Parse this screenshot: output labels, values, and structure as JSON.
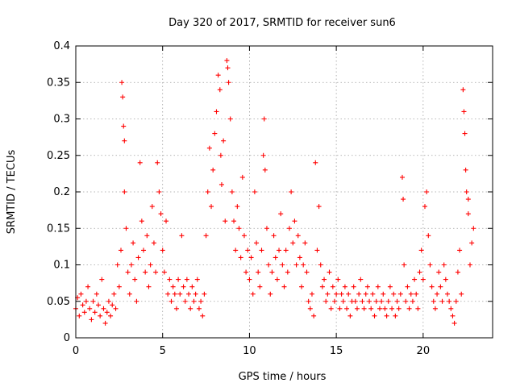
{
  "chart_data": {
    "type": "scatter",
    "title": "Day 320 of 2017, SRMTID for receiver sun6",
    "xlabel": "GPS time / hours",
    "ylabel": "SRMTID / TECUs",
    "xlim": [
      0,
      24
    ],
    "ylim": [
      0,
      0.4
    ],
    "xticks": [
      0,
      5,
      10,
      15,
      20
    ],
    "xtick_labels": [
      "0",
      "5",
      "10",
      "15",
      "20"
    ],
    "yticks": [
      0,
      0.05,
      0.1,
      0.15,
      0.2,
      0.25,
      0.3,
      0.35,
      0.4
    ],
    "ytick_labels": [
      "0",
      "0.05",
      "0.1",
      "0.15",
      "0.2",
      "0.25",
      "0.3",
      "0.35",
      "0.4"
    ],
    "grid": true,
    "marker": "+",
    "color": "#ff0000",
    "series": [
      {
        "name": "SRMTID",
        "points": [
          [
            0.0,
            0.04
          ],
          [
            0.1,
            0.055
          ],
          [
            0.2,
            0.03
          ],
          [
            0.3,
            0.06
          ],
          [
            0.4,
            0.045
          ],
          [
            0.5,
            0.035
          ],
          [
            0.6,
            0.05
          ],
          [
            0.7,
            0.07
          ],
          [
            0.8,
            0.04
          ],
          [
            0.9,
            0.025
          ],
          [
            1.0,
            0.05
          ],
          [
            1.1,
            0.035
          ],
          [
            1.2,
            0.06
          ],
          [
            1.3,
            0.045
          ],
          [
            1.4,
            0.03
          ],
          [
            1.5,
            0.08
          ],
          [
            1.6,
            0.04
          ],
          [
            1.7,
            0.02
          ],
          [
            1.8,
            0.035
          ],
          [
            1.9,
            0.05
          ],
          [
            2.0,
            0.03
          ],
          [
            2.1,
            0.045
          ],
          [
            2.2,
            0.06
          ],
          [
            2.3,
            0.04
          ],
          [
            2.4,
            0.1
          ],
          [
            2.5,
            0.07
          ],
          [
            2.6,
            0.12
          ],
          [
            2.65,
            0.35
          ],
          [
            2.7,
            0.33
          ],
          [
            2.75,
            0.29
          ],
          [
            2.8,
            0.27
          ],
          [
            2.8,
            0.2
          ],
          [
            2.9,
            0.15
          ],
          [
            3.0,
            0.09
          ],
          [
            3.1,
            0.06
          ],
          [
            3.2,
            0.1
          ],
          [
            3.3,
            0.13
          ],
          [
            3.4,
            0.08
          ],
          [
            3.5,
            0.05
          ],
          [
            3.6,
            0.11
          ],
          [
            3.7,
            0.24
          ],
          [
            3.8,
            0.16
          ],
          [
            3.9,
            0.12
          ],
          [
            4.0,
            0.09
          ],
          [
            4.1,
            0.14
          ],
          [
            4.2,
            0.07
          ],
          [
            4.3,
            0.1
          ],
          [
            4.4,
            0.18
          ],
          [
            4.5,
            0.13
          ],
          [
            4.6,
            0.09
          ],
          [
            4.7,
            0.24
          ],
          [
            4.8,
            0.2
          ],
          [
            4.9,
            0.17
          ],
          [
            5.0,
            0.12
          ],
          [
            5.1,
            0.09
          ],
          [
            5.2,
            0.16
          ],
          [
            5.3,
            0.06
          ],
          [
            5.4,
            0.08
          ],
          [
            5.5,
            0.05
          ],
          [
            5.6,
            0.07
          ],
          [
            5.7,
            0.06
          ],
          [
            5.8,
            0.04
          ],
          [
            5.9,
            0.08
          ],
          [
            6.0,
            0.06
          ],
          [
            6.1,
            0.14
          ],
          [
            6.2,
            0.07
          ],
          [
            6.3,
            0.05
          ],
          [
            6.4,
            0.08
          ],
          [
            6.5,
            0.06
          ],
          [
            6.6,
            0.04
          ],
          [
            6.7,
            0.07
          ],
          [
            6.8,
            0.05
          ],
          [
            6.9,
            0.06
          ],
          [
            7.0,
            0.08
          ],
          [
            7.1,
            0.04
          ],
          [
            7.2,
            0.05
          ],
          [
            7.3,
            0.03
          ],
          [
            7.4,
            0.06
          ],
          [
            7.5,
            0.14
          ],
          [
            7.6,
            0.2
          ],
          [
            7.7,
            0.26
          ],
          [
            7.8,
            0.18
          ],
          [
            7.9,
            0.23
          ],
          [
            8.0,
            0.28
          ],
          [
            8.1,
            0.31
          ],
          [
            8.2,
            0.36
          ],
          [
            8.3,
            0.34
          ],
          [
            8.35,
            0.25
          ],
          [
            8.4,
            0.21
          ],
          [
            8.5,
            0.27
          ],
          [
            8.6,
            0.16
          ],
          [
            8.7,
            0.38
          ],
          [
            8.75,
            0.37
          ],
          [
            8.8,
            0.35
          ],
          [
            8.9,
            0.3
          ],
          [
            9.0,
            0.2
          ],
          [
            9.1,
            0.16
          ],
          [
            9.2,
            0.12
          ],
          [
            9.3,
            0.18
          ],
          [
            9.4,
            0.15
          ],
          [
            9.5,
            0.11
          ],
          [
            9.6,
            0.22
          ],
          [
            9.7,
            0.14
          ],
          [
            9.8,
            0.09
          ],
          [
            9.9,
            0.12
          ],
          [
            10.0,
            0.08
          ],
          [
            10.1,
            0.11
          ],
          [
            10.2,
            0.06
          ],
          [
            10.3,
            0.2
          ],
          [
            10.4,
            0.13
          ],
          [
            10.5,
            0.09
          ],
          [
            10.6,
            0.07
          ],
          [
            10.7,
            0.12
          ],
          [
            10.8,
            0.25
          ],
          [
            10.85,
            0.3
          ],
          [
            10.9,
            0.23
          ],
          [
            11.0,
            0.15
          ],
          [
            11.1,
            0.1
          ],
          [
            11.2,
            0.06
          ],
          [
            11.3,
            0.09
          ],
          [
            11.4,
            0.14
          ],
          [
            11.5,
            0.11
          ],
          [
            11.6,
            0.08
          ],
          [
            11.7,
            0.12
          ],
          [
            11.8,
            0.17
          ],
          [
            11.9,
            0.1
          ],
          [
            12.0,
            0.07
          ],
          [
            12.1,
            0.12
          ],
          [
            12.2,
            0.09
          ],
          [
            12.3,
            0.15
          ],
          [
            12.4,
            0.2
          ],
          [
            12.5,
            0.13
          ],
          [
            12.6,
            0.16
          ],
          [
            12.7,
            0.1
          ],
          [
            12.8,
            0.14
          ],
          [
            12.9,
            0.11
          ],
          [
            13.0,
            0.07
          ],
          [
            13.1,
            0.1
          ],
          [
            13.2,
            0.13
          ],
          [
            13.3,
            0.09
          ],
          [
            13.4,
            0.05
          ],
          [
            13.5,
            0.04
          ],
          [
            13.6,
            0.06
          ],
          [
            13.7,
            0.03
          ],
          [
            13.8,
            0.24
          ],
          [
            13.9,
            0.12
          ],
          [
            14.0,
            0.18
          ],
          [
            14.1,
            0.1
          ],
          [
            14.2,
            0.07
          ],
          [
            14.3,
            0.08
          ],
          [
            14.4,
            0.05
          ],
          [
            14.5,
            0.06
          ],
          [
            14.6,
            0.09
          ],
          [
            14.7,
            0.04
          ],
          [
            14.8,
            0.07
          ],
          [
            14.9,
            0.05
          ],
          [
            15.0,
            0.06
          ],
          [
            15.1,
            0.08
          ],
          [
            15.2,
            0.04
          ],
          [
            15.3,
            0.06
          ],
          [
            15.4,
            0.05
          ],
          [
            15.5,
            0.07
          ],
          [
            15.6,
            0.04
          ],
          [
            15.7,
            0.06
          ],
          [
            15.8,
            0.03
          ],
          [
            15.9,
            0.05
          ],
          [
            16.0,
            0.07
          ],
          [
            16.1,
            0.05
          ],
          [
            16.2,
            0.04
          ],
          [
            16.3,
            0.06
          ],
          [
            16.4,
            0.08
          ],
          [
            16.5,
            0.05
          ],
          [
            16.6,
            0.04
          ],
          [
            16.7,
            0.06
          ],
          [
            16.8,
            0.07
          ],
          [
            16.9,
            0.05
          ],
          [
            17.0,
            0.04
          ],
          [
            17.1,
            0.06
          ],
          [
            17.2,
            0.03
          ],
          [
            17.3,
            0.05
          ],
          [
            17.4,
            0.07
          ],
          [
            17.5,
            0.04
          ],
          [
            17.6,
            0.05
          ],
          [
            17.7,
            0.06
          ],
          [
            17.8,
            0.04
          ],
          [
            17.9,
            0.03
          ],
          [
            18.0,
            0.05
          ],
          [
            18.1,
            0.07
          ],
          [
            18.2,
            0.04
          ],
          [
            18.3,
            0.06
          ],
          [
            18.4,
            0.03
          ],
          [
            18.5,
            0.05
          ],
          [
            18.6,
            0.04
          ],
          [
            18.7,
            0.06
          ],
          [
            18.8,
            0.22
          ],
          [
            18.85,
            0.19
          ],
          [
            18.9,
            0.1
          ],
          [
            19.0,
            0.05
          ],
          [
            19.1,
            0.07
          ],
          [
            19.2,
            0.04
          ],
          [
            19.3,
            0.06
          ],
          [
            19.4,
            0.05
          ],
          [
            19.5,
            0.08
          ],
          [
            19.6,
            0.06
          ],
          [
            19.7,
            0.04
          ],
          [
            19.8,
            0.09
          ],
          [
            19.9,
            0.12
          ],
          [
            20.0,
            0.08
          ],
          [
            20.1,
            0.18
          ],
          [
            20.2,
            0.2
          ],
          [
            20.3,
            0.14
          ],
          [
            20.4,
            0.1
          ],
          [
            20.5,
            0.07
          ],
          [
            20.6,
            0.05
          ],
          [
            20.7,
            0.04
          ],
          [
            20.8,
            0.06
          ],
          [
            20.9,
            0.09
          ],
          [
            21.0,
            0.07
          ],
          [
            21.1,
            0.05
          ],
          [
            21.2,
            0.1
          ],
          [
            21.3,
            0.08
          ],
          [
            21.4,
            0.06
          ],
          [
            21.5,
            0.05
          ],
          [
            21.6,
            0.04
          ],
          [
            21.7,
            0.03
          ],
          [
            21.8,
            0.02
          ],
          [
            21.9,
            0.05
          ],
          [
            22.0,
            0.09
          ],
          [
            22.1,
            0.12
          ],
          [
            22.2,
            0.06
          ],
          [
            22.3,
            0.34
          ],
          [
            22.35,
            0.31
          ],
          [
            22.4,
            0.28
          ],
          [
            22.45,
            0.23
          ],
          [
            22.5,
            0.2
          ],
          [
            22.6,
            0.17
          ],
          [
            22.7,
            0.1
          ],
          [
            22.8,
            0.13
          ],
          [
            22.9,
            0.15
          ],
          [
            22.6,
            0.19
          ]
        ]
      }
    ]
  }
}
